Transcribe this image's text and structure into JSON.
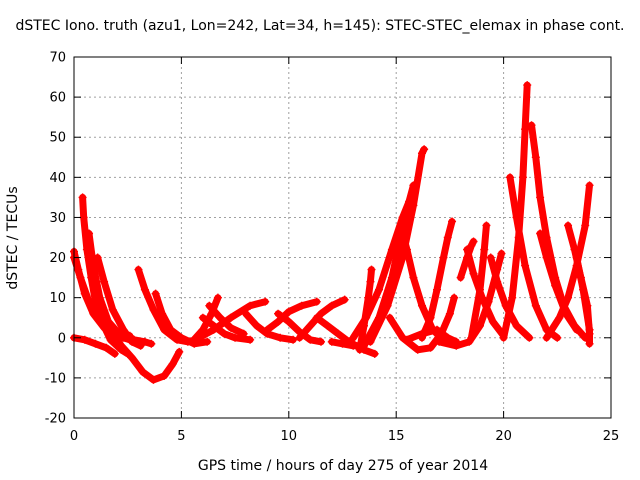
{
  "chart_data": {
    "type": "scatter",
    "title": "dSTEC Iono. truth (azu1, Lon=242, Lat=34, h=145): STEC-STEC_elemax in phase cont.",
    "xlabel": "GPS time / hours of day 275 of year 2014",
    "ylabel": "dSTEC  / TECUs",
    "xlim": [
      0,
      25
    ],
    "ylim": [
      -20,
      70
    ],
    "xticks": [
      "0",
      "5",
      "10",
      "15",
      "20",
      "25"
    ],
    "yticks": [
      "-20",
      "-10",
      "0",
      "10",
      "20",
      "30",
      "40",
      "50",
      "60",
      "70"
    ],
    "grid": true,
    "legend": "none",
    "marker": "plus",
    "color": "#ff0000",
    "series": [
      {
        "points": [
          [
            0.0,
            21.5
          ],
          [
            0.2,
            17
          ],
          [
            0.5,
            11
          ],
          [
            0.9,
            6
          ],
          [
            1.4,
            2.5
          ],
          [
            2.0,
            0.5
          ],
          [
            2.6,
            -0.5
          ],
          [
            3.0,
            -1
          ]
        ]
      },
      {
        "points": [
          [
            0.0,
            20
          ],
          [
            0.3,
            15
          ],
          [
            0.7,
            9
          ],
          [
            1.2,
            4
          ],
          [
            1.7,
            1
          ]
        ]
      },
      {
        "points": [
          [
            0.0,
            0
          ],
          [
            0.5,
            -0.5
          ],
          [
            1.0,
            -1.5
          ],
          [
            1.5,
            -2.5
          ],
          [
            1.9,
            -4
          ]
        ]
      },
      {
        "points": [
          [
            0.4,
            35
          ],
          [
            0.45,
            30
          ],
          [
            0.6,
            22
          ],
          [
            0.8,
            15
          ],
          [
            1.0,
            9
          ],
          [
            1.3,
            4
          ],
          [
            1.7,
            -0.5
          ],
          [
            2.2,
            -3
          ],
          [
            2.5,
            -4
          ]
        ]
      },
      {
        "points": [
          [
            0.7,
            26
          ],
          [
            0.9,
            18
          ],
          [
            1.2,
            10
          ],
          [
            1.6,
            4
          ],
          [
            2.1,
            1
          ],
          [
            2.6,
            0.5
          ]
        ]
      },
      {
        "points": [
          [
            1.1,
            20
          ],
          [
            1.4,
            14
          ],
          [
            1.8,
            7
          ],
          [
            2.3,
            2
          ],
          [
            2.7,
            -1
          ],
          [
            3.1,
            -2
          ]
        ]
      },
      {
        "points": [
          [
            1.7,
            2
          ],
          [
            2.2,
            -2
          ],
          [
            2.7,
            -5
          ],
          [
            3.2,
            -8.5
          ],
          [
            3.7,
            -10.5
          ],
          [
            4.2,
            -9.5
          ],
          [
            4.6,
            -6.5
          ],
          [
            4.9,
            -3.5
          ]
        ]
      },
      {
        "points": [
          [
            1.9,
            0.5
          ],
          [
            2.3,
            0
          ],
          [
            2.8,
            -0.5
          ],
          [
            3.3,
            -1
          ],
          [
            3.6,
            -1.5
          ]
        ]
      },
      {
        "points": [
          [
            3.0,
            17
          ],
          [
            3.3,
            12
          ],
          [
            3.7,
            7
          ],
          [
            4.2,
            2
          ],
          [
            4.8,
            -0.5
          ],
          [
            5.3,
            -1
          ],
          [
            5.7,
            -0.5
          ]
        ]
      },
      {
        "points": [
          [
            3.8,
            11
          ],
          [
            4.1,
            6
          ],
          [
            4.5,
            2
          ],
          [
            5.0,
            0
          ],
          [
            5.6,
            -1.5
          ],
          [
            6.2,
            -1
          ]
        ]
      },
      {
        "points": [
          [
            5.5,
            -1
          ],
          [
            6.0,
            2
          ],
          [
            6.4,
            6
          ],
          [
            6.7,
            10
          ]
        ]
      },
      {
        "points": [
          [
            5.8,
            0
          ],
          [
            6.5,
            2
          ],
          [
            7.3,
            5
          ],
          [
            8.2,
            8
          ],
          [
            8.9,
            9
          ]
        ]
      },
      {
        "points": [
          [
            6.0,
            5
          ],
          [
            6.5,
            3
          ],
          [
            7.0,
            1
          ],
          [
            7.5,
            0
          ],
          [
            8.2,
            -0.5
          ]
        ]
      },
      {
        "points": [
          [
            6.3,
            8
          ],
          [
            6.8,
            5
          ],
          [
            7.3,
            2.5
          ],
          [
            7.9,
            1
          ]
        ]
      },
      {
        "points": [
          [
            8.0,
            6
          ],
          [
            8.5,
            3
          ],
          [
            9.0,
            1
          ],
          [
            9.6,
            0
          ],
          [
            10.2,
            -0.5
          ]
        ]
      },
      {
        "points": [
          [
            9.0,
            2
          ],
          [
            9.5,
            4
          ],
          [
            10.0,
            6.5
          ],
          [
            10.6,
            8
          ],
          [
            11.3,
            9
          ]
        ]
      },
      {
        "points": [
          [
            9.5,
            6
          ],
          [
            10.0,
            4
          ],
          [
            10.5,
            1.5
          ],
          [
            11.0,
            -0.5
          ],
          [
            11.5,
            -1
          ]
        ]
      },
      {
        "points": [
          [
            10.5,
            0
          ],
          [
            11.0,
            3
          ],
          [
            11.5,
            6
          ],
          [
            12.0,
            8
          ],
          [
            12.6,
            9.5
          ]
        ]
      },
      {
        "points": [
          [
            11.3,
            5
          ],
          [
            11.8,
            3
          ],
          [
            12.3,
            1
          ],
          [
            12.8,
            -1
          ],
          [
            13.5,
            -3
          ],
          [
            14.0,
            -4
          ]
        ]
      },
      {
        "points": [
          [
            12.0,
            -1
          ],
          [
            12.5,
            -1.5
          ],
          [
            13.0,
            -2
          ],
          [
            13.4,
            -2
          ]
        ]
      },
      {
        "points": [
          [
            13.3,
            -3
          ],
          [
            13.5,
            3
          ],
          [
            13.7,
            10
          ],
          [
            13.8,
            14
          ],
          [
            13.85,
            17
          ]
        ]
      },
      {
        "points": [
          [
            13.0,
            0
          ],
          [
            13.6,
            5
          ],
          [
            14.2,
            12
          ],
          [
            14.8,
            22
          ],
          [
            15.3,
            30
          ],
          [
            15.6,
            34
          ],
          [
            15.8,
            38
          ]
        ]
      },
      {
        "points": [
          [
            13.5,
            -2
          ],
          [
            14.2,
            5
          ],
          [
            14.8,
            15
          ],
          [
            15.2,
            25
          ],
          [
            15.5,
            31
          ]
        ]
      },
      {
        "points": [
          [
            13.8,
            -1
          ],
          [
            14.6,
            8
          ],
          [
            15.3,
            20
          ],
          [
            15.8,
            33
          ],
          [
            16.2,
            46
          ],
          [
            16.3,
            47
          ]
        ]
      },
      {
        "points": [
          [
            14.7,
            5
          ],
          [
            15.3,
            0
          ],
          [
            16.0,
            -3
          ],
          [
            16.6,
            -2.5
          ],
          [
            17.1,
            1
          ],
          [
            17.5,
            6
          ],
          [
            17.7,
            10
          ]
        ]
      },
      {
        "points": [
          [
            15.2,
            28
          ],
          [
            15.5,
            22
          ],
          [
            15.8,
            15
          ],
          [
            16.2,
            8
          ],
          [
            16.7,
            2
          ],
          [
            17.2,
            -0.5
          ]
        ]
      },
      {
        "points": [
          [
            15.5,
            -0.5
          ],
          [
            16.2,
            1
          ],
          [
            16.9,
            2
          ],
          [
            17.4,
            0
          ],
          [
            17.8,
            -1
          ]
        ]
      },
      {
        "points": [
          [
            16.2,
            0
          ],
          [
            16.6,
            5
          ],
          [
            16.9,
            12
          ],
          [
            17.2,
            20
          ],
          [
            17.4,
            25
          ],
          [
            17.6,
            29
          ]
        ]
      },
      {
        "points": [
          [
            17.0,
            -1
          ],
          [
            17.8,
            -2
          ],
          [
            18.4,
            -1
          ],
          [
            18.9,
            3
          ],
          [
            19.3,
            9
          ],
          [
            19.7,
            17
          ],
          [
            19.9,
            21
          ]
        ]
      },
      {
        "points": [
          [
            18.0,
            15
          ],
          [
            18.3,
            20
          ],
          [
            18.5,
            23
          ],
          [
            18.6,
            24
          ]
        ]
      },
      {
        "points": [
          [
            18.3,
            22
          ],
          [
            18.6,
            16
          ],
          [
            19.0,
            10
          ],
          [
            19.5,
            4
          ],
          [
            20.0,
            0.5
          ]
        ]
      },
      {
        "points": [
          [
            18.5,
            0
          ],
          [
            18.9,
            12
          ],
          [
            19.1,
            22
          ],
          [
            19.2,
            28
          ]
        ]
      },
      {
        "points": [
          [
            19.4,
            20
          ],
          [
            19.7,
            14
          ],
          [
            20.1,
            8
          ],
          [
            20.6,
            3
          ],
          [
            21.2,
            0
          ]
        ]
      },
      {
        "points": [
          [
            20.0,
            0
          ],
          [
            20.4,
            10
          ],
          [
            20.7,
            25
          ],
          [
            20.9,
            40
          ],
          [
            21.0,
            52
          ],
          [
            21.1,
            63
          ]
        ]
      },
      {
        "points": [
          [
            20.3,
            40
          ],
          [
            20.6,
            30
          ],
          [
            21.0,
            18
          ],
          [
            21.5,
            8
          ],
          [
            22.0,
            2
          ],
          [
            22.5,
            0
          ]
        ]
      },
      {
        "points": [
          [
            21.3,
            53
          ],
          [
            21.5,
            45
          ],
          [
            21.7,
            35
          ],
          [
            22.0,
            25
          ],
          [
            22.4,
            15
          ],
          [
            22.8,
            8
          ],
          [
            23.3,
            3
          ],
          [
            23.8,
            0
          ]
        ]
      },
      {
        "points": [
          [
            21.7,
            26
          ],
          [
            22.0,
            20
          ],
          [
            22.4,
            13
          ],
          [
            22.9,
            6
          ],
          [
            23.4,
            2
          ]
        ]
      },
      {
        "points": [
          [
            22.0,
            0
          ],
          [
            22.6,
            5
          ],
          [
            23.0,
            10
          ],
          [
            23.4,
            18
          ],
          [
            23.8,
            28
          ],
          [
            24.0,
            38
          ]
        ]
      },
      {
        "points": [
          [
            23.0,
            28
          ],
          [
            23.3,
            22
          ],
          [
            23.6,
            15
          ],
          [
            23.9,
            8
          ],
          [
            24.0,
            1
          ]
        ]
      },
      {
        "points": [
          [
            23.4,
            20
          ],
          [
            23.7,
            12
          ],
          [
            24.0,
            2
          ],
          [
            24.0,
            -1.5
          ]
        ]
      }
    ]
  }
}
